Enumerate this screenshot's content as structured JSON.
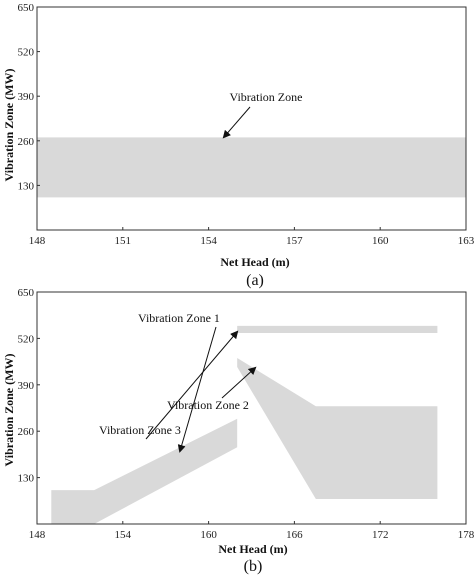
{
  "chart_data": [
    {
      "type": "area",
      "xlabel": "Net Head (m)",
      "ylabel": "Vibration Zone (MW)",
      "xlim": [
        148,
        163
      ],
      "ylim": [
        0,
        650
      ],
      "xticks": [
        "148",
        "151",
        "154",
        "157",
        "160",
        "163"
      ],
      "yticks": [
        "650",
        "520",
        "390",
        "260",
        "130"
      ],
      "caption": "(a)",
      "grid": false,
      "zones": [
        {
          "label": "Vibration Zone",
          "label_position": "above-center",
          "lower": [
            {
              "x": 148,
              "y": 95
            },
            {
              "x": 163,
              "y": 95
            }
          ],
          "upper": [
            {
              "x": 148,
              "y": 270
            },
            {
              "x": 163,
              "y": 270
            }
          ]
        }
      ],
      "fill_color": "#d9d9d9"
    },
    {
      "type": "area",
      "xlabel": "Net Head (m)",
      "ylabel": "Vibration Zone (MW)",
      "xlim": [
        148,
        178
      ],
      "ylim": [
        0,
        650
      ],
      "xticks": [
        "148",
        "154",
        "160",
        "166",
        "172",
        "178"
      ],
      "yticks": [
        "650",
        "520",
        "390",
        "260",
        "130"
      ],
      "caption": "(b)",
      "grid": false,
      "zones": [
        {
          "label": "Vibration Zone 1",
          "label_position": "left",
          "lower": [
            {
              "x": 149,
              "y": 0
            },
            {
              "x": 152,
              "y": 0
            },
            {
              "x": 162,
              "y": 215
            }
          ],
          "upper": [
            {
              "x": 149,
              "y": 95
            },
            {
              "x": 152,
              "y": 95
            },
            {
              "x": 162,
              "y": 295
            }
          ]
        },
        {
          "label": "Vibration Zone 2",
          "label_position": "left",
          "lower": [
            {
              "x": 162,
              "y": 440
            },
            {
              "x": 167.5,
              "y": 70
            },
            {
              "x": 176,
              "y": 70
            }
          ],
          "upper": [
            {
              "x": 162,
              "y": 465
            },
            {
              "x": 167.5,
              "y": 330
            },
            {
              "x": 176,
              "y": 330
            }
          ]
        },
        {
          "label": "Vibration Zone 3",
          "label_position": "upper-left",
          "lower": [
            {
              "x": 162,
              "y": 535
            },
            {
              "x": 176,
              "y": 535
            }
          ],
          "upper": [
            {
              "x": 162,
              "y": 555
            },
            {
              "x": 176,
              "y": 555
            }
          ]
        }
      ],
      "fill_color": "#d9d9d9"
    }
  ]
}
